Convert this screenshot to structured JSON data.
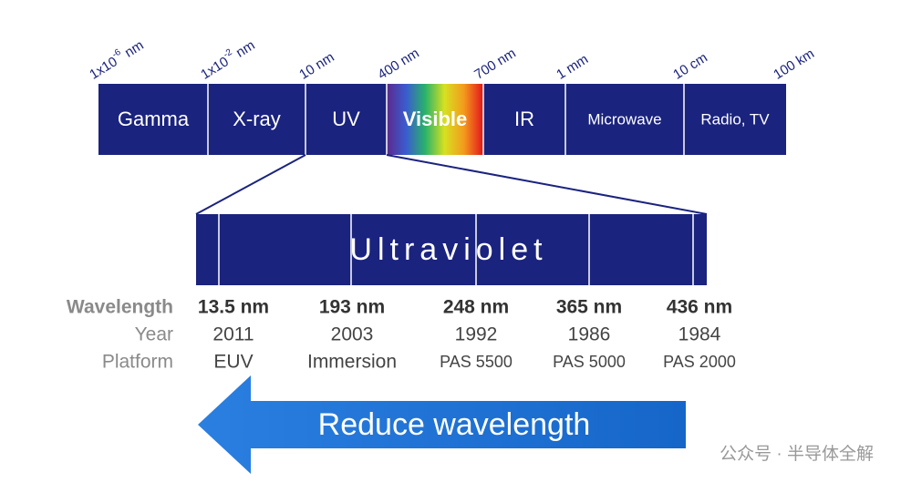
{
  "scale_labels": [
    {
      "base": "1x10",
      "sup": "-6",
      "unit": " nm"
    },
    {
      "base": "1x10",
      "sup": "-2",
      "unit": " nm"
    },
    {
      "base": "10 nm"
    },
    {
      "base": "400 nm"
    },
    {
      "base": "700 nm"
    },
    {
      "base": "1 mm"
    },
    {
      "base": "10 cm"
    },
    {
      "base": "100 km"
    }
  ],
  "bands": [
    "Gamma",
    "X-ray",
    "UV",
    "Visible",
    "IR",
    "Microwave",
    "Radio, TV"
  ],
  "uv_title": "Ultraviolet",
  "table": {
    "rows": [
      [
        "Wavelength",
        "13.5 nm",
        "193 nm",
        "248 nm",
        "365 nm",
        "436 nm"
      ],
      [
        "Year",
        "2011",
        "2003",
        "1992",
        "1986",
        "1984"
      ],
      [
        "Platform",
        "EUV",
        "Immersion",
        "PAS 5500",
        "PAS 5000",
        "PAS 2000"
      ]
    ]
  },
  "arrow_label": "Reduce wavelength",
  "watermark": "公众号 · 半导体全解"
}
